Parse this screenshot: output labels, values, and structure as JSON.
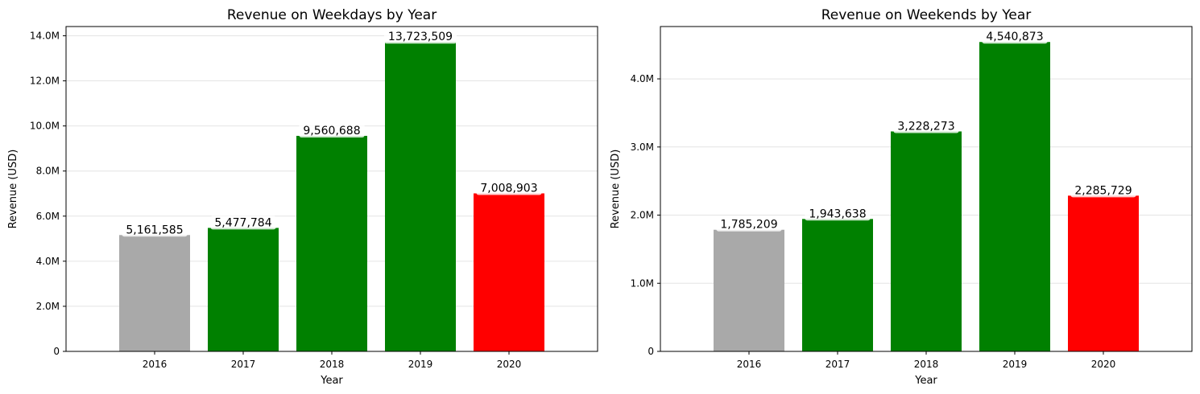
{
  "chart_data": [
    {
      "type": "bar",
      "title": "Revenue on Weekdays by Year",
      "xlabel": "Year",
      "ylabel": "Revenue (USD)",
      "categories": [
        "2016",
        "2017",
        "2018",
        "2019",
        "2020"
      ],
      "values": [
        5161585,
        5477784,
        9560688,
        13723509,
        7008903
      ],
      "data_labels": [
        "5,161,585",
        "5,477,784",
        "9,560,688",
        "13,723,509",
        "7,008,903"
      ],
      "bar_colors": [
        "#a9a9a9",
        "#008000",
        "#008000",
        "#008000",
        "#ff0000"
      ],
      "yticks": [
        0,
        2000000,
        4000000,
        6000000,
        8000000,
        10000000,
        12000000,
        14000000
      ],
      "ytick_labels": [
        "0",
        "2.0M",
        "4.0M",
        "6.0M",
        "8.0M",
        "10.0M",
        "12.0M",
        "14.0M"
      ],
      "ylim": [
        0,
        14409684
      ],
      "grid": "y-axis"
    },
    {
      "type": "bar",
      "title": "Revenue on Weekends by Year",
      "xlabel": "Year",
      "ylabel": "Revenue (USD)",
      "categories": [
        "2016",
        "2017",
        "2018",
        "2019",
        "2020"
      ],
      "values": [
        1785209,
        1943638,
        3228273,
        4540873,
        2285729
      ],
      "data_labels": [
        "1,785,209",
        "1,943,638",
        "3,228,273",
        "4,540,873",
        "2,285,729"
      ],
      "bar_colors": [
        "#a9a9a9",
        "#008000",
        "#008000",
        "#008000",
        "#ff0000"
      ],
      "yticks": [
        0,
        1000000,
        2000000,
        3000000,
        4000000
      ],
      "ytick_labels": [
        "0",
        "1.0M",
        "2.0M",
        "3.0M",
        "4.0M"
      ],
      "ylim": [
        0,
        4767917
      ],
      "grid": "y-axis"
    }
  ]
}
